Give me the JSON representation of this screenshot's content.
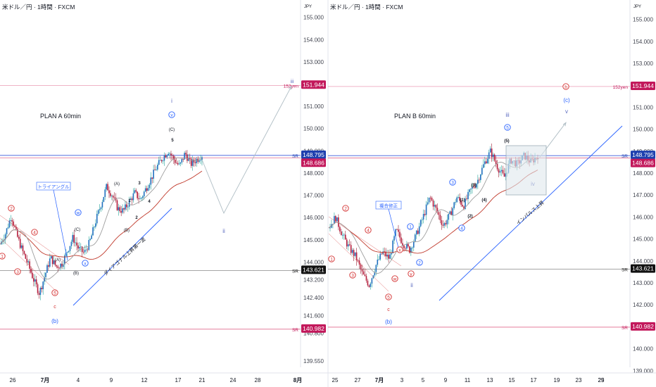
{
  "panels": [
    {
      "id": "plan-a",
      "header": "米ドル／円 · 1時間 · FXCM",
      "currency": "JPY",
      "plan_label": "PLAN A  60min",
      "y_ticks": [
        "155.000",
        "154.000",
        "153.000",
        "152.000",
        "151.000",
        "150.000",
        "149.000",
        "148.000",
        "147.000",
        "146.000",
        "145.000",
        "144.000",
        "143.200",
        "142.400",
        "141.600",
        "140.800",
        "139.550"
      ],
      "y_tick_values": [
        155.0,
        154.0,
        153.0,
        152.0,
        151.0,
        150.0,
        149.0,
        148.0,
        147.0,
        146.0,
        145.0,
        144.0,
        143.2,
        142.4,
        141.6,
        140.8,
        139.55
      ],
      "x_ticks": [
        "26",
        "7月",
        "4",
        "9",
        "12",
        "17",
        "21",
        "24",
        "28",
        "8月"
      ],
      "levels": [
        {
          "label": "152yen",
          "value": "151.944",
          "color": "#c2185b"
        },
        {
          "label": "SR",
          "value": "148.795",
          "color": "#1e40af"
        },
        {
          "label": "",
          "value": "148.686",
          "color": "#c2185b"
        },
        {
          "label": "SR",
          "value": "143.621",
          "color": "#111111"
        },
        {
          "label": "SR",
          "value": "140.982",
          "color": "#c2185b"
        }
      ],
      "annotations": [
        "トライアングル",
        "ダイアゴナル上昇第一波",
        "i",
        "v",
        "(C)",
        "5",
        "(A)",
        "3",
        "(B)",
        "2",
        "1",
        "4",
        "(A)",
        "(C)",
        "w",
        "x",
        "(B)",
        "(b)",
        "c",
        "2",
        "4",
        "3",
        "5",
        "1",
        "ii",
        "iii"
      ]
    },
    {
      "id": "plan-b",
      "header": "米ドル／円 · 1時間 · FXCM",
      "currency": "JPY",
      "plan_label": "PLAN B 60min",
      "y_ticks": [
        "155.000",
        "154.000",
        "153.000",
        "152.000",
        "151.000",
        "150.000",
        "149.000",
        "148.000",
        "147.000",
        "146.000",
        "145.000",
        "144.000",
        "143.000",
        "142.000",
        "141.000",
        "140.000",
        "139.000"
      ],
      "y_tick_values": [
        155,
        154,
        153,
        152,
        151,
        150,
        149,
        148,
        147,
        146,
        145,
        144,
        143,
        142,
        141,
        140,
        139
      ],
      "x_ticks": [
        "25",
        "27",
        "7月",
        "3",
        "5",
        "9",
        "11",
        "13",
        "15",
        "17",
        "19",
        "23",
        "25",
        "29"
      ],
      "levels": [
        {
          "label": "152yen",
          "value": "151.944",
          "color": "#c2185b"
        },
        {
          "label": "SR",
          "value": "148.795",
          "color": "#1e40af"
        },
        {
          "label": "",
          "value": "148.686",
          "color": "#c2185b"
        },
        {
          "label": "SR",
          "value": "143.621",
          "color": "#111111"
        },
        {
          "label": "SR",
          "value": "140.982",
          "color": "#c2185b"
        }
      ],
      "annotations": [
        "複合修正",
        "インパルス上昇",
        "iii",
        "5",
        "(5)",
        "(3)",
        "(1)",
        "(4)",
        "(2)",
        "3",
        "4",
        "1",
        "2",
        "x",
        "y",
        "w",
        "5",
        "c",
        "(b)",
        "ii",
        "iv",
        "v",
        "(c)",
        "b",
        "2",
        "4",
        "3",
        "1"
      ]
    }
  ],
  "chart_data": [
    {
      "type": "candlestick",
      "title": "米ドル／円 · 1時間 · FXCM",
      "subtitle": "PLAN A  60min",
      "xlabel": "",
      "ylabel": "",
      "categories": [
        "26",
        "7月",
        "4",
        "9",
        "12",
        "17",
        "21",
        "24",
        "28",
        "8月"
      ],
      "ylim": [
        139.3,
        155.4
      ],
      "levels": [
        151.944,
        148.795,
        148.686,
        143.621,
        140.982
      ],
      "price_path": [
        144.8,
        145.3,
        146.1,
        145.2,
        144.5,
        143.9,
        143.2,
        142.6,
        143.4,
        144.2,
        143.8,
        143.9,
        144.5,
        145.1,
        144.6,
        144.4,
        144.9,
        145.8,
        146.6,
        147.4,
        147.0,
        146.4,
        146.3,
        146.7,
        147.1,
        146.8,
        147.3,
        147.8,
        148.3,
        148.7,
        149.0,
        148.6,
        148.3,
        148.9,
        148.4,
        148.6,
        148.8
      ],
      "projection": [
        148.6,
        146.2,
        151.9
      ],
      "grid": false,
      "legend": "none"
    },
    {
      "type": "candlestick",
      "title": "米ドル／円 · 1時間 · FXCM",
      "subtitle": "PLAN B 60min",
      "xlabel": "",
      "ylabel": "",
      "categories": [
        "25",
        "27",
        "7月",
        "3",
        "5",
        "9",
        "11",
        "13",
        "15",
        "17",
        "19",
        "23",
        "25",
        "29"
      ],
      "ylim": [
        138.8,
        155.5
      ],
      "levels": [
        151.944,
        148.795,
        148.686,
        143.621,
        140.982
      ],
      "price_path": [
        145.5,
        146.0,
        145.2,
        144.6,
        144.2,
        143.4,
        142.9,
        143.8,
        144.4,
        144.1,
        145.4,
        144.8,
        144.5,
        145.2,
        146.0,
        146.9,
        146.3,
        145.6,
        146.1,
        146.9,
        146.5,
        147.2,
        147.6,
        148.4,
        149.0,
        148.3,
        147.8,
        148.6,
        148.4,
        148.8,
        148.5,
        148.8
      ],
      "projection": [
        148.6,
        150.3
      ],
      "grid": false,
      "legend": "none"
    }
  ]
}
